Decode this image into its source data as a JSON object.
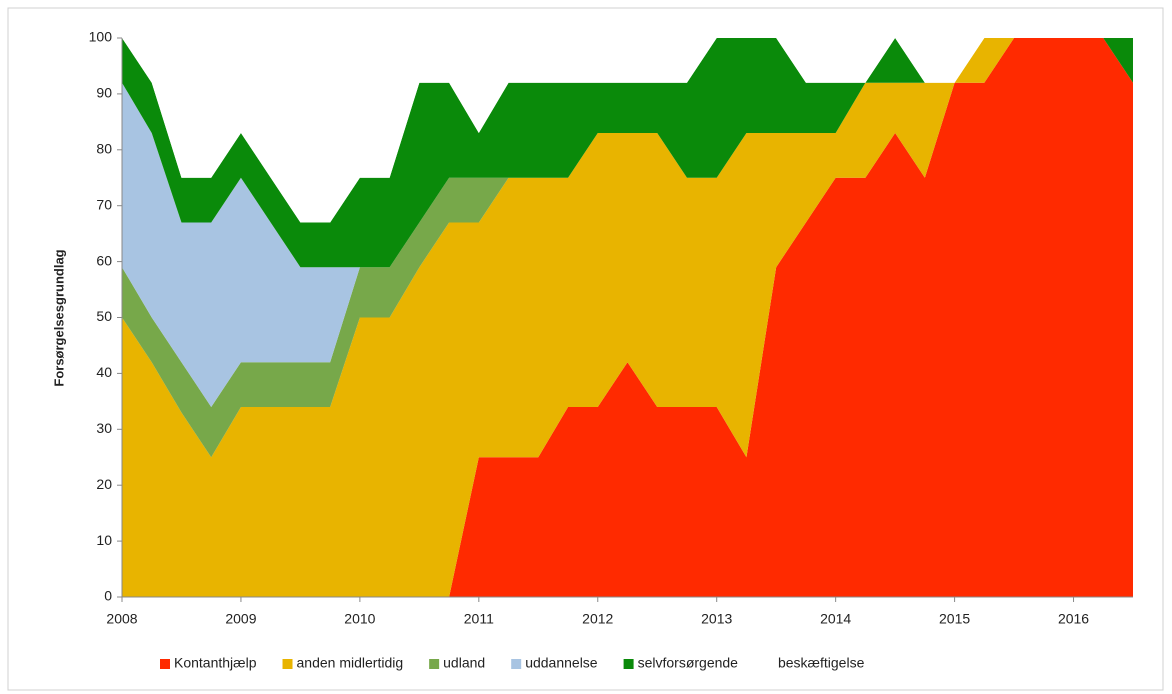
{
  "chart_data": {
    "type": "stacked_area",
    "y_label": "Forsørgelsesgrundlag",
    "x": [
      2008.0,
      2008.25,
      2008.5,
      2008.75,
      2009.0,
      2009.25,
      2009.5,
      2009.75,
      2010.0,
      2010.25,
      2010.5,
      2010.75,
      2011.0,
      2011.25,
      2011.5,
      2011.75,
      2012.0,
      2012.25,
      2012.5,
      2012.75,
      2013.0,
      2013.25,
      2013.5,
      2013.75,
      2014.0,
      2014.25,
      2014.5,
      2014.75,
      2015.0,
      2015.25,
      2015.5,
      2015.75,
      2016.0,
      2016.25,
      2016.5
    ],
    "series": [
      {
        "name": "Kontanthjælp",
        "color": "#ff2a00",
        "values": [
          0,
          0,
          0,
          0,
          0,
          0,
          0,
          0,
          0,
          0,
          0,
          0,
          25,
          25,
          25,
          34,
          34,
          42,
          34,
          34,
          34,
          25,
          59,
          67,
          75,
          75,
          83,
          75,
          92,
          92,
          100,
          100,
          100,
          100,
          92
        ]
      },
      {
        "name": "anden midlertidig",
        "color": "#e8b400",
        "values": [
          50,
          42,
          33,
          25,
          34,
          34,
          34,
          34,
          50,
          50,
          59,
          67,
          42,
          50,
          50,
          41,
          49,
          41,
          49,
          41,
          41,
          58,
          24,
          16,
          8,
          17,
          9,
          17,
          0,
          8,
          0,
          0,
          0,
          0,
          0
        ]
      },
      {
        "name": "udland",
        "color": "#77a84a",
        "values": [
          9,
          8,
          9,
          9,
          8,
          8,
          8,
          8,
          9,
          9,
          8,
          8,
          8,
          0,
          0,
          0,
          0,
          0,
          0,
          0,
          0,
          0,
          0,
          0,
          0,
          0,
          0,
          0,
          0,
          0,
          0,
          0,
          0,
          0,
          0
        ]
      },
      {
        "name": "uddannelse",
        "color": "#a8c4e2",
        "values": [
          33,
          33,
          25,
          33,
          33,
          25,
          17,
          17,
          0,
          0,
          0,
          0,
          0,
          0,
          0,
          0,
          0,
          0,
          0,
          0,
          0,
          0,
          0,
          0,
          0,
          0,
          0,
          0,
          0,
          0,
          0,
          0,
          0,
          0,
          0
        ]
      },
      {
        "name": "selvforsørgende",
        "color": "#0a8a0a",
        "values": [
          8,
          9,
          8,
          8,
          8,
          8,
          8,
          8,
          16,
          16,
          25,
          17,
          8,
          17,
          17,
          17,
          9,
          9,
          9,
          17,
          25,
          17,
          17,
          9,
          9,
          0,
          8,
          0,
          0,
          0,
          0,
          0,
          0,
          0,
          8
        ]
      },
      {
        "name": "beskæftigelse",
        "color": "#ffffff",
        "values": [
          0,
          8,
          25,
          25,
          17,
          25,
          33,
          33,
          25,
          25,
          8,
          8,
          17,
          8,
          8,
          8,
          8,
          8,
          8,
          8,
          0,
          0,
          0,
          8,
          8,
          8,
          0,
          8,
          8,
          0,
          0,
          0,
          0,
          0,
          0
        ]
      }
    ],
    "xlim": [
      2008,
      2016.5
    ],
    "xticks": [
      2008,
      2009,
      2010,
      2011,
      2012,
      2013,
      2014,
      2015,
      2016
    ],
    "ylim": [
      0,
      100
    ],
    "yticks": [
      0,
      10,
      20,
      30,
      40,
      50,
      60,
      70,
      80,
      90,
      100
    ],
    "legend": "bottom"
  }
}
